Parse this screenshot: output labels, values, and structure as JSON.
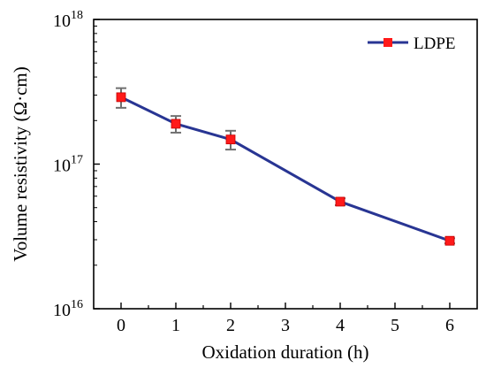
{
  "chart_data": {
    "type": "line",
    "xlabel": "Oxidation duration (h)",
    "ylabel": "Volume resistivity (Ω·cm)",
    "x_ticks": [
      "0",
      "1",
      "2",
      "3",
      "4",
      "5",
      "6"
    ],
    "xlim": [
      -0.5,
      6.5
    ],
    "y_scale": "log",
    "ylim": [
      1e+16,
      1e+18
    ],
    "y_ticks": [
      {
        "base": "10",
        "exp": "16",
        "value": 1e+16
      },
      {
        "base": "10",
        "exp": "17",
        "value": 1e+17
      },
      {
        "base": "10",
        "exp": "18",
        "value": 1e+18
      }
    ],
    "legend_position": "top-right",
    "series": [
      {
        "name": "LDPE",
        "color": "#283593",
        "marker_color": "#ff1a1a",
        "errorbar_color": "#707070",
        "x": [
          0,
          1,
          2,
          4,
          6
        ],
        "y": [
          2.9e+17,
          1.9e+17,
          1.48e+17,
          5.5e+16,
          2.95e+16
        ],
        "y_err_low": [
          4.5e+16,
          2.5e+16,
          2.2e+16,
          3000000000000000.0,
          1200000000000000.0
        ],
        "y_err_high": [
          4.5e+16,
          2.5e+16,
          2.2e+16,
          3000000000000000.0,
          1200000000000000.0
        ]
      }
    ]
  }
}
